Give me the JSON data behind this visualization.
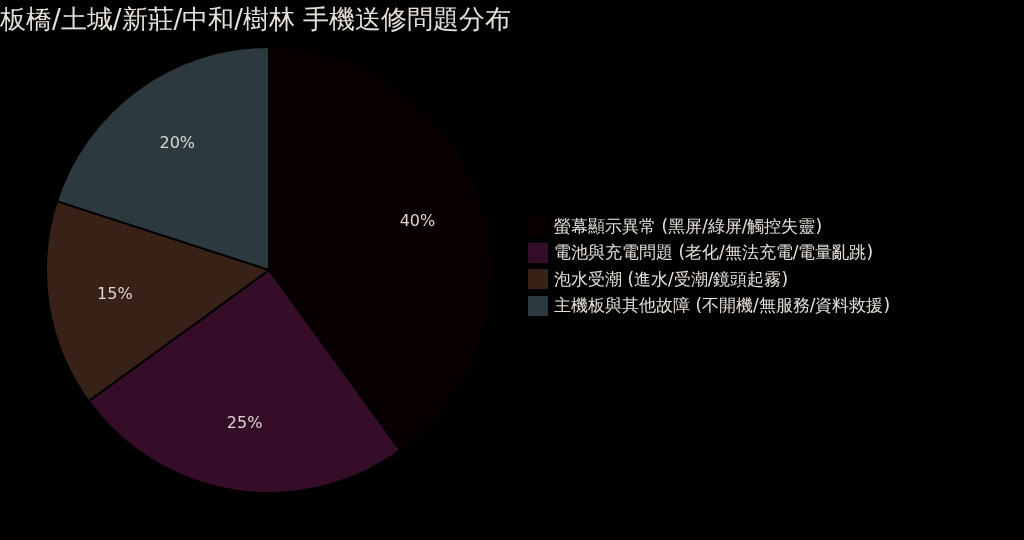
{
  "chart_data": {
    "type": "pie",
    "title": "板橋/土城/新莊/中和/樹林 手機送修問題分布",
    "categories": [
      "螢幕顯示異常 (黑屏/綠屏/觸控失靈)",
      "電池與充電問題 (老化/無法充電/電量亂跳)",
      "泡水受潮 (進水/受潮/鏡頭起霧)",
      "主機板與其他故障 (不開機/無服務/資料救援)"
    ],
    "values": [
      40,
      25,
      15,
      20
    ],
    "colors": [
      "#080000",
      "#350d28",
      "#382217",
      "#2c3a3f"
    ],
    "value_labels": [
      "40%",
      "25%",
      "15%",
      "20%"
    ],
    "legend": "right"
  }
}
